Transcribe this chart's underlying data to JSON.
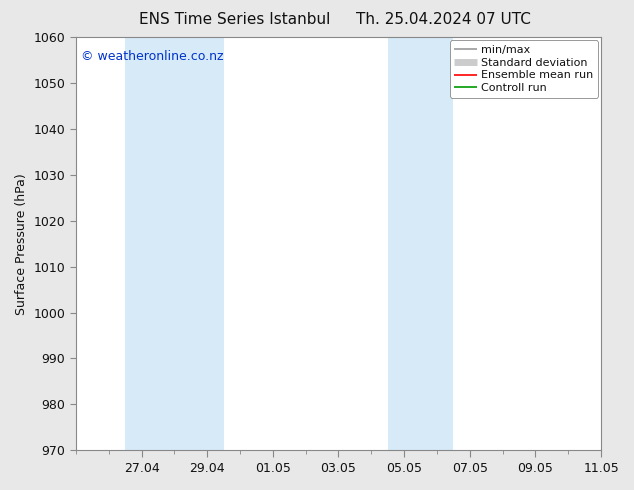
{
  "title_left": "ENS Time Series Istanbul",
  "title_right": "Th. 25.04.2024 07 UTC",
  "ylabel": "Surface Pressure (hPa)",
  "ylim": [
    970,
    1060
  ],
  "yticks": [
    970,
    980,
    990,
    1000,
    1010,
    1020,
    1030,
    1040,
    1050,
    1060
  ],
  "xlim": [
    0.0,
    16.0
  ],
  "xtick_labels": [
    "27.04",
    "29.04",
    "01.05",
    "03.05",
    "05.05",
    "07.05",
    "09.05",
    "11.05"
  ],
  "xtick_positions": [
    2.0,
    4.0,
    6.0,
    8.0,
    10.0,
    12.0,
    14.0,
    16.0
  ],
  "shaded_bands": [
    {
      "x_start": 1.5,
      "x_end": 4.5,
      "color": "#d6eaf8"
    },
    {
      "x_start": 9.5,
      "x_end": 11.5,
      "color": "#d6eaf8"
    }
  ],
  "watermark_text": "© weatheronline.co.nz",
  "watermark_color": "#0033cc",
  "bg_color": "#e8e8e8",
  "plot_bg_color": "#ffffff",
  "legend_items": [
    {
      "label": "min/max",
      "color": "#999999",
      "lw": 1.2
    },
    {
      "label": "Standard deviation",
      "color": "#cccccc",
      "lw": 5
    },
    {
      "label": "Ensemble mean run",
      "color": "#ff0000",
      "lw": 1.2
    },
    {
      "label": "Controll run",
      "color": "#009900",
      "lw": 1.2
    }
  ],
  "spine_color": "#888888",
  "tick_color": "#333333",
  "font_color": "#111111",
  "title_fontsize": 11,
  "label_fontsize": 9,
  "tick_fontsize": 9,
  "legend_fontsize": 8
}
